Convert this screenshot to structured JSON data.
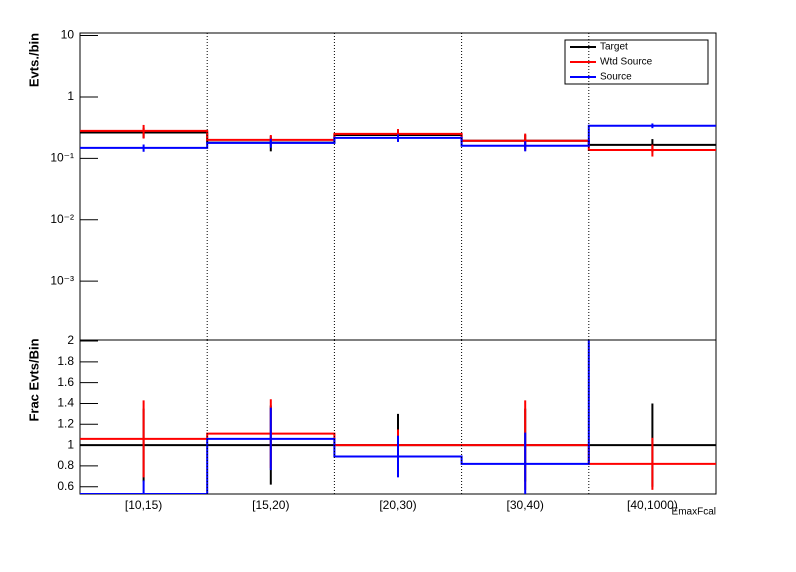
{
  "chart_data": [
    {
      "type": "step",
      "ylabel": "Evts./bin",
      "log": true,
      "grid_x": true,
      "legend": "top-right",
      "ylim": [
        0.00011,
        11
      ],
      "yticks": [
        {
          "value": 10,
          "label": "10"
        },
        {
          "value": 1,
          "label": "1"
        },
        {
          "value": 0.1,
          "label": "10⁻¹"
        },
        {
          "value": 0.01,
          "label": "10⁻²"
        },
        {
          "value": 0.001,
          "label": "10⁻³"
        }
      ],
      "series": [
        {
          "name": "Target",
          "color": "#000000",
          "values": [
            0.264,
            0.18,
            0.24,
            0.193,
            0.166
          ],
          "errors": [
            0.05,
            0.05,
            0.05,
            0.05,
            0.04
          ]
        },
        {
          "name": "Wtd Source",
          "color": "#ff0000",
          "values": [
            0.28,
            0.2,
            0.25,
            0.193,
            0.137
          ],
          "errors": [
            0.07,
            0.04,
            0.05,
            0.06,
            0.03
          ]
        },
        {
          "name": "Source",
          "color": "#0000ff",
          "values": [
            0.148,
            0.179,
            0.215,
            0.16,
            0.34
          ],
          "errors": [
            0.02,
            0.03,
            0.03,
            0.03,
            0.03
          ]
        }
      ]
    },
    {
      "type": "step",
      "ylabel": "Frac Evts/Bin",
      "xlabel": "EmaxFcal",
      "grid_x": true,
      "categories": [
        "[10,15)",
        "[15,20)",
        "[20,30)",
        "[30,40)",
        "[40,1000)"
      ],
      "ylim": [
        0.53,
        2.01
      ],
      "yticks": [
        0.6,
        0.8,
        1,
        1.2,
        1.4,
        1.6,
        1.8,
        2
      ],
      "series": [
        {
          "color": "#000000",
          "values": [
            1,
            1,
            1,
            1,
            1
          ],
          "errors": [
            0.35,
            0.38,
            0.3,
            0.35,
            0.4
          ]
        },
        {
          "color": "#ff0000",
          "values": [
            1.06,
            1.11,
            1.0,
            1.0,
            0.82
          ],
          "errors": [
            0.37,
            0.33,
            0.15,
            0.43,
            0.25
          ]
        },
        {
          "color": "#0000ff",
          "values": [
            0.53,
            1.06,
            0.89,
            0.82,
            2.05
          ],
          "errors": [
            0.13,
            0.3,
            0.2,
            0.3,
            0
          ]
        }
      ]
    }
  ]
}
